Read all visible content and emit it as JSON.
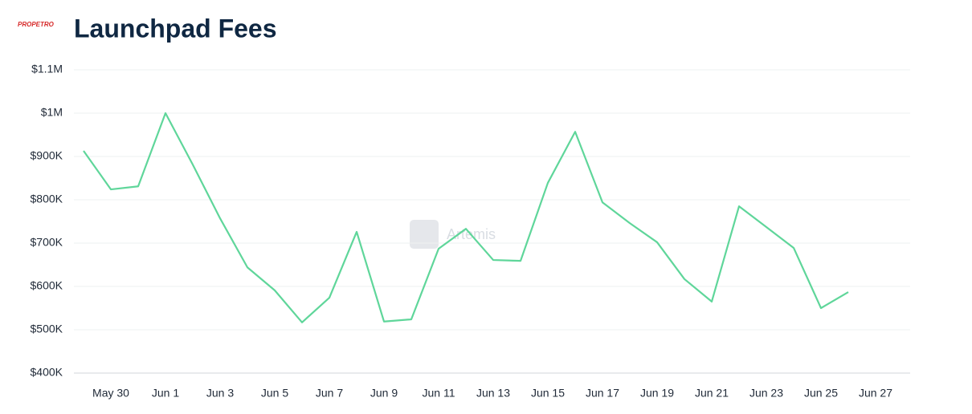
{
  "chart_data": {
    "type": "line",
    "title": "Launchpad Fees",
    "logo": "PROPETRO",
    "watermark": "Artemis",
    "categories": [
      null,
      "May 30",
      null,
      "Jun 1",
      null,
      "Jun 3",
      null,
      "Jun 5",
      null,
      "Jun 7",
      null,
      "Jun 9",
      null,
      "Jun 11",
      null,
      "Jun 13",
      null,
      "Jun 15",
      null,
      "Jun 17",
      null,
      "Jun 19",
      null,
      "Jun 21",
      null,
      "Jun 23",
      null,
      "Jun 25",
      null,
      "Jun 27"
    ],
    "series": [
      {
        "name": "Launchpad Fees",
        "color": "#5fd69a",
        "values": [
          913000,
          824000,
          831000,
          1000000,
          881000,
          757000,
          644000,
          591000,
          517000,
          574000,
          726000,
          519000,
          524000,
          687000,
          733000,
          661000,
          659000,
          839000,
          957000,
          794000,
          746000,
          702000,
          617000,
          565000,
          785000,
          737000,
          689000,
          550000,
          587000,
          null
        ]
      }
    ],
    "ylim": [
      400000,
      1100000
    ],
    "yticks": [
      {
        "value": 400000,
        "label": "$400K"
      },
      {
        "value": 500000,
        "label": "$500K"
      },
      {
        "value": 600000,
        "label": "$600K"
      },
      {
        "value": 700000,
        "label": "$700K"
      },
      {
        "value": 800000,
        "label": "$800K"
      },
      {
        "value": 900000,
        "label": "$900K"
      },
      {
        "value": 1000000,
        "label": "$1M"
      },
      {
        "value": 1100000,
        "label": "$1.1M"
      }
    ],
    "grid": true
  }
}
